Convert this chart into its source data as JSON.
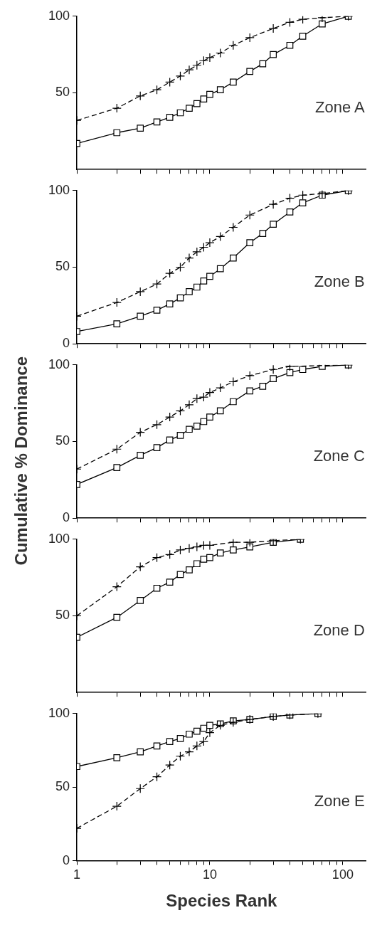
{
  "chart_data": [
    {
      "type": "line",
      "annotations": [
        "Zone A"
      ],
      "log": "x",
      "xlim": [
        1,
        150
      ],
      "ylim": [
        0,
        100
      ],
      "xticks": [
        1,
        {
          "value": 2,
          "label": null
        },
        {
          "value": 3,
          "label": null
        },
        {
          "value": 4,
          "label": null
        },
        {
          "value": 5,
          "label": null
        },
        {
          "value": 6,
          "label": null
        },
        {
          "value": 7,
          "label": null
        },
        {
          "value": 8,
          "label": null
        },
        {
          "value": 9,
          "label": null
        },
        10,
        {
          "value": 20,
          "label": null
        },
        {
          "value": 30,
          "label": null
        },
        {
          "value": 40,
          "label": null
        },
        {
          "value": 50,
          "label": null
        },
        {
          "value": 60,
          "label": null
        },
        {
          "value": 70,
          "label": null
        },
        {
          "value": 80,
          "label": null
        },
        {
          "value": 90,
          "label": null
        },
        100
      ],
      "yticks": [
        50,
        100
      ],
      "tick_labels": "y",
      "grid": false,
      "legend": false,
      "series": [
        {
          "color": "#000000",
          "marker": "cross",
          "line_style": "dashed",
          "x": [
            1,
            2,
            3,
            4,
            5,
            6,
            7,
            8,
            9,
            10,
            12,
            15,
            20,
            30,
            40,
            50,
            70,
            110
          ],
          "values": [
            32,
            40,
            48,
            52,
            57,
            61,
            65,
            68,
            71,
            73,
            76,
            81,
            86,
            92,
            96,
            98,
            99,
            100
          ]
        },
        {
          "color": "#000000",
          "marker": "square",
          "line_style": "solid",
          "x": [
            1,
            2,
            3,
            4,
            5,
            6,
            7,
            8,
            9,
            10,
            12,
            15,
            20,
            25,
            30,
            40,
            50,
            70,
            110
          ],
          "values": [
            17,
            24,
            27,
            31,
            34,
            37,
            40,
            43,
            46,
            49,
            52,
            57,
            64,
            69,
            75,
            81,
            87,
            95,
            100
          ]
        }
      ]
    },
    {
      "type": "line",
      "annotations": [
        "Zone B"
      ],
      "log": "x",
      "xlim": [
        1,
        150
      ],
      "ylim": [
        0,
        100
      ],
      "xticks": [
        1,
        {
          "value": 2,
          "label": null
        },
        {
          "value": 3,
          "label": null
        },
        {
          "value": 4,
          "label": null
        },
        {
          "value": 5,
          "label": null
        },
        {
          "value": 6,
          "label": null
        },
        {
          "value": 7,
          "label": null
        },
        {
          "value": 8,
          "label": null
        },
        {
          "value": 9,
          "label": null
        },
        10,
        {
          "value": 20,
          "label": null
        },
        {
          "value": 30,
          "label": null
        },
        {
          "value": 40,
          "label": null
        },
        {
          "value": 50,
          "label": null
        },
        {
          "value": 60,
          "label": null
        },
        {
          "value": 70,
          "label": null
        },
        {
          "value": 80,
          "label": null
        },
        {
          "value": 90,
          "label": null
        },
        100
      ],
      "yticks": [
        0,
        50,
        100
      ],
      "tick_labels": "y",
      "grid": false,
      "legend": false,
      "series": [
        {
          "color": "#000000",
          "marker": "cross",
          "line_style": "dashed",
          "x": [
            1,
            2,
            3,
            4,
            5,
            6,
            7,
            8,
            9,
            10,
            12,
            15,
            20,
            30,
            40,
            50,
            70,
            110
          ],
          "values": [
            18,
            27,
            34,
            39,
            46,
            50,
            56,
            60,
            63,
            66,
            70,
            76,
            84,
            91,
            95,
            97,
            98,
            100
          ]
        },
        {
          "color": "#000000",
          "marker": "square",
          "line_style": "solid",
          "x": [
            1,
            2,
            3,
            4,
            5,
            6,
            7,
            8,
            9,
            10,
            12,
            15,
            20,
            25,
            30,
            40,
            50,
            70,
            110
          ],
          "values": [
            8,
            13,
            18,
            22,
            26,
            30,
            34,
            37,
            41,
            44,
            49,
            56,
            66,
            72,
            78,
            86,
            92,
            97,
            100
          ]
        }
      ]
    },
    {
      "type": "line",
      "ylabel": "Cumulative % Dominance",
      "annotations": [
        "Zone C"
      ],
      "log": "x",
      "xlim": [
        1,
        150
      ],
      "ylim": [
        0,
        100
      ],
      "xticks": [
        1,
        {
          "value": 2,
          "label": null
        },
        {
          "value": 3,
          "label": null
        },
        {
          "value": 4,
          "label": null
        },
        {
          "value": 5,
          "label": null
        },
        {
          "value": 6,
          "label": null
        },
        {
          "value": 7,
          "label": null
        },
        {
          "value": 8,
          "label": null
        },
        {
          "value": 9,
          "label": null
        },
        10,
        {
          "value": 20,
          "label": null
        },
        {
          "value": 30,
          "label": null
        },
        {
          "value": 40,
          "label": null
        },
        {
          "value": 50,
          "label": null
        },
        {
          "value": 60,
          "label": null
        },
        {
          "value": 70,
          "label": null
        },
        {
          "value": 80,
          "label": null
        },
        {
          "value": 90,
          "label": null
        },
        100
      ],
      "yticks": [
        0,
        50,
        100
      ],
      "tick_labels": "y",
      "grid": false,
      "legend": false,
      "series": [
        {
          "color": "#000000",
          "marker": "cross",
          "line_style": "dashed",
          "x": [
            1,
            2,
            3,
            4,
            5,
            6,
            7,
            8,
            9,
            10,
            12,
            15,
            20,
            30,
            40,
            110
          ],
          "values": [
            32,
            45,
            56,
            61,
            66,
            70,
            74,
            78,
            79,
            82,
            85,
            89,
            93,
            97,
            99,
            100
          ]
        },
        {
          "color": "#000000",
          "marker": "square",
          "line_style": "solid",
          "x": [
            1,
            2,
            3,
            4,
            5,
            6,
            7,
            8,
            9,
            10,
            12,
            15,
            20,
            25,
            30,
            40,
            50,
            70,
            110
          ],
          "values": [
            22,
            33,
            41,
            46,
            51,
            54,
            58,
            60,
            63,
            66,
            70,
            76,
            83,
            86,
            91,
            95,
            97,
            99,
            100
          ]
        }
      ]
    },
    {
      "type": "line",
      "annotations": [
        "Zone D"
      ],
      "log": "x",
      "xlim": [
        1,
        150
      ],
      "ylim": [
        0,
        100
      ],
      "xticks": [
        1,
        {
          "value": 2,
          "label": null
        },
        {
          "value": 3,
          "label": null
        },
        {
          "value": 4,
          "label": null
        },
        {
          "value": 5,
          "label": null
        },
        {
          "value": 6,
          "label": null
        },
        {
          "value": 7,
          "label": null
        },
        {
          "value": 8,
          "label": null
        },
        {
          "value": 9,
          "label": null
        },
        10,
        {
          "value": 20,
          "label": null
        },
        {
          "value": 30,
          "label": null
        },
        {
          "value": 40,
          "label": null
        },
        {
          "value": 50,
          "label": null
        },
        {
          "value": 60,
          "label": null
        },
        {
          "value": 70,
          "label": null
        },
        {
          "value": 80,
          "label": null
        },
        {
          "value": 90,
          "label": null
        },
        100
      ],
      "yticks": [
        50,
        100
      ],
      "tick_labels": "y",
      "grid": false,
      "legend": false,
      "series": [
        {
          "color": "#000000",
          "marker": "cross",
          "line_style": "dashed",
          "x": [
            1,
            2,
            3,
            4,
            5,
            6,
            7,
            8,
            9,
            10,
            15,
            20,
            30,
            48
          ],
          "values": [
            50,
            69,
            82,
            88,
            90,
            93,
            94,
            95,
            96,
            96,
            98,
            98,
            99,
            100
          ]
        },
        {
          "color": "#000000",
          "marker": "square",
          "line_style": "solid",
          "x": [
            1,
            2,
            3,
            4,
            5,
            6,
            7,
            8,
            9,
            10,
            12,
            15,
            20,
            30,
            48
          ],
          "values": [
            36,
            49,
            60,
            68,
            72,
            77,
            80,
            84,
            87,
            88,
            91,
            93,
            95,
            98,
            100
          ]
        }
      ]
    },
    {
      "type": "line",
      "xlabel": "Species Rank",
      "annotations": [
        "Zone E"
      ],
      "log": "x",
      "xlim": [
        1,
        150
      ],
      "ylim": [
        0,
        100
      ],
      "xticks": [
        1,
        {
          "value": 2,
          "label": null
        },
        {
          "value": 3,
          "label": null
        },
        {
          "value": 4,
          "label": null
        },
        {
          "value": 5,
          "label": null
        },
        {
          "value": 6,
          "label": null
        },
        {
          "value": 7,
          "label": null
        },
        {
          "value": 8,
          "label": null
        },
        {
          "value": 9,
          "label": null
        },
        10,
        {
          "value": 20,
          "label": null
        },
        {
          "value": 30,
          "label": null
        },
        {
          "value": 40,
          "label": null
        },
        {
          "value": 50,
          "label": null
        },
        {
          "value": 60,
          "label": null
        },
        {
          "value": 70,
          "label": null
        },
        {
          "value": 80,
          "label": null
        },
        {
          "value": 90,
          "label": null
        },
        100
      ],
      "yticks": [
        0,
        50,
        100
      ],
      "grid": false,
      "legend": false,
      "series": [
        {
          "color": "#000000",
          "marker": "cross",
          "line_style": "dashed",
          "x": [
            1,
            2,
            3,
            4,
            5,
            6,
            7,
            8,
            9,
            10,
            12,
            15,
            20,
            30,
            40,
            65
          ],
          "values": [
            22,
            37,
            49,
            57,
            65,
            71,
            74,
            78,
            81,
            87,
            92,
            94,
            96,
            98,
            99,
            100
          ]
        },
        {
          "color": "#000000",
          "marker": "square",
          "line_style": "solid",
          "x": [
            1,
            2,
            3,
            4,
            5,
            6,
            7,
            8,
            9,
            10,
            12,
            15,
            20,
            30,
            40,
            65
          ],
          "values": [
            64,
            70,
            74,
            78,
            81,
            83,
            86,
            88,
            90,
            92,
            93,
            95,
            96,
            98,
            99,
            100
          ]
        }
      ]
    }
  ]
}
